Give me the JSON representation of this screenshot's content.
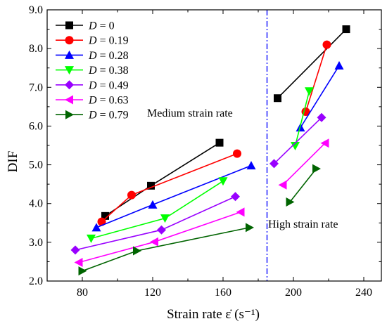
{
  "chart_data": {
    "type": "line",
    "xlabel": "Strain rate ε̇ (s⁻¹)",
    "ylabel": "DIF",
    "xlim": [
      60,
      250
    ],
    "ylim": [
      2.0,
      9.0
    ],
    "xticks": [
      80,
      120,
      160,
      200,
      240
    ],
    "yticks": [
      2.0,
      3.0,
      4.0,
      5.0,
      6.0,
      7.0,
      8.0,
      9.0
    ],
    "divider_x": 185,
    "divider_color": "#1a1aff",
    "annotations": {
      "medium": "Medium strain rate",
      "high": "High strain rate"
    },
    "legend_position": "top-left",
    "series": [
      {
        "name": "D = 0",
        "label_italic": "D",
        "label_rest": " = 0",
        "color": "#000000",
        "marker": "square",
        "groups": [
          [
            [
              93,
              3.68
            ],
            [
              119,
              4.46
            ],
            [
              158,
              5.57
            ]
          ],
          [
            [
              191,
              6.72
            ],
            [
              230,
              8.5
            ]
          ]
        ]
      },
      {
        "name": "D = 0.19",
        "label_italic": "D",
        "label_rest": " = 0.19",
        "color": "#ff0000",
        "marker": "circle",
        "groups": [
          [
            [
              91,
              3.53
            ],
            [
              108,
              4.22
            ],
            [
              168,
              5.29
            ]
          ],
          [
            [
              207,
              6.37
            ],
            [
              219,
              8.1
            ]
          ]
        ]
      },
      {
        "name": "D = 0.28",
        "label_italic": "D",
        "label_rest": " = 0.28",
        "color": "#0000ff",
        "marker": "triangle-up",
        "groups": [
          [
            [
              88,
              3.38
            ],
            [
              120,
              3.97
            ],
            [
              176,
              4.98
            ]
          ],
          [
            [
              204,
              5.96
            ],
            [
              226,
              7.56
            ]
          ]
        ]
      },
      {
        "name": "D = 0.38",
        "label_italic": "D",
        "label_rest": " = 0.38",
        "color": "#00ff00",
        "marker": "triangle-down",
        "groups": [
          [
            [
              85,
              3.1
            ],
            [
              127,
              3.62
            ],
            [
              160,
              4.58
            ]
          ],
          [
            [
              201,
              5.49
            ],
            [
              209,
              6.9
            ]
          ]
        ]
      },
      {
        "name": "D = 0.49",
        "label_italic": "D",
        "label_rest": " = 0.49",
        "color": "#9900ff",
        "marker": "diamond",
        "groups": [
          [
            [
              76,
              2.8
            ],
            [
              125,
              3.32
            ],
            [
              167,
              4.18
            ]
          ],
          [
            [
              189,
              5.03
            ],
            [
              216,
              6.22
            ]
          ]
        ]
      },
      {
        "name": "D = 0.63",
        "label_italic": "D",
        "label_rest": " = 0.63",
        "color": "#ff00ff",
        "marker": "triangle-left",
        "groups": [
          [
            [
              78,
              2.48
            ],
            [
              121,
              3.01
            ],
            [
              170,
              3.78
            ]
          ],
          [
            [
              194,
              4.48
            ],
            [
              218,
              5.56
            ]
          ]
        ]
      },
      {
        "name": "D = 0.79",
        "label_italic": "D",
        "label_rest": " = 0.79",
        "color": "#006400",
        "marker": "triangle-right",
        "groups": [
          [
            [
              80,
              2.26
            ],
            [
              111,
              2.78
            ],
            [
              175,
              3.38
            ]
          ],
          [
            [
              198,
              4.04
            ],
            [
              213,
              4.9
            ]
          ]
        ]
      }
    ]
  }
}
